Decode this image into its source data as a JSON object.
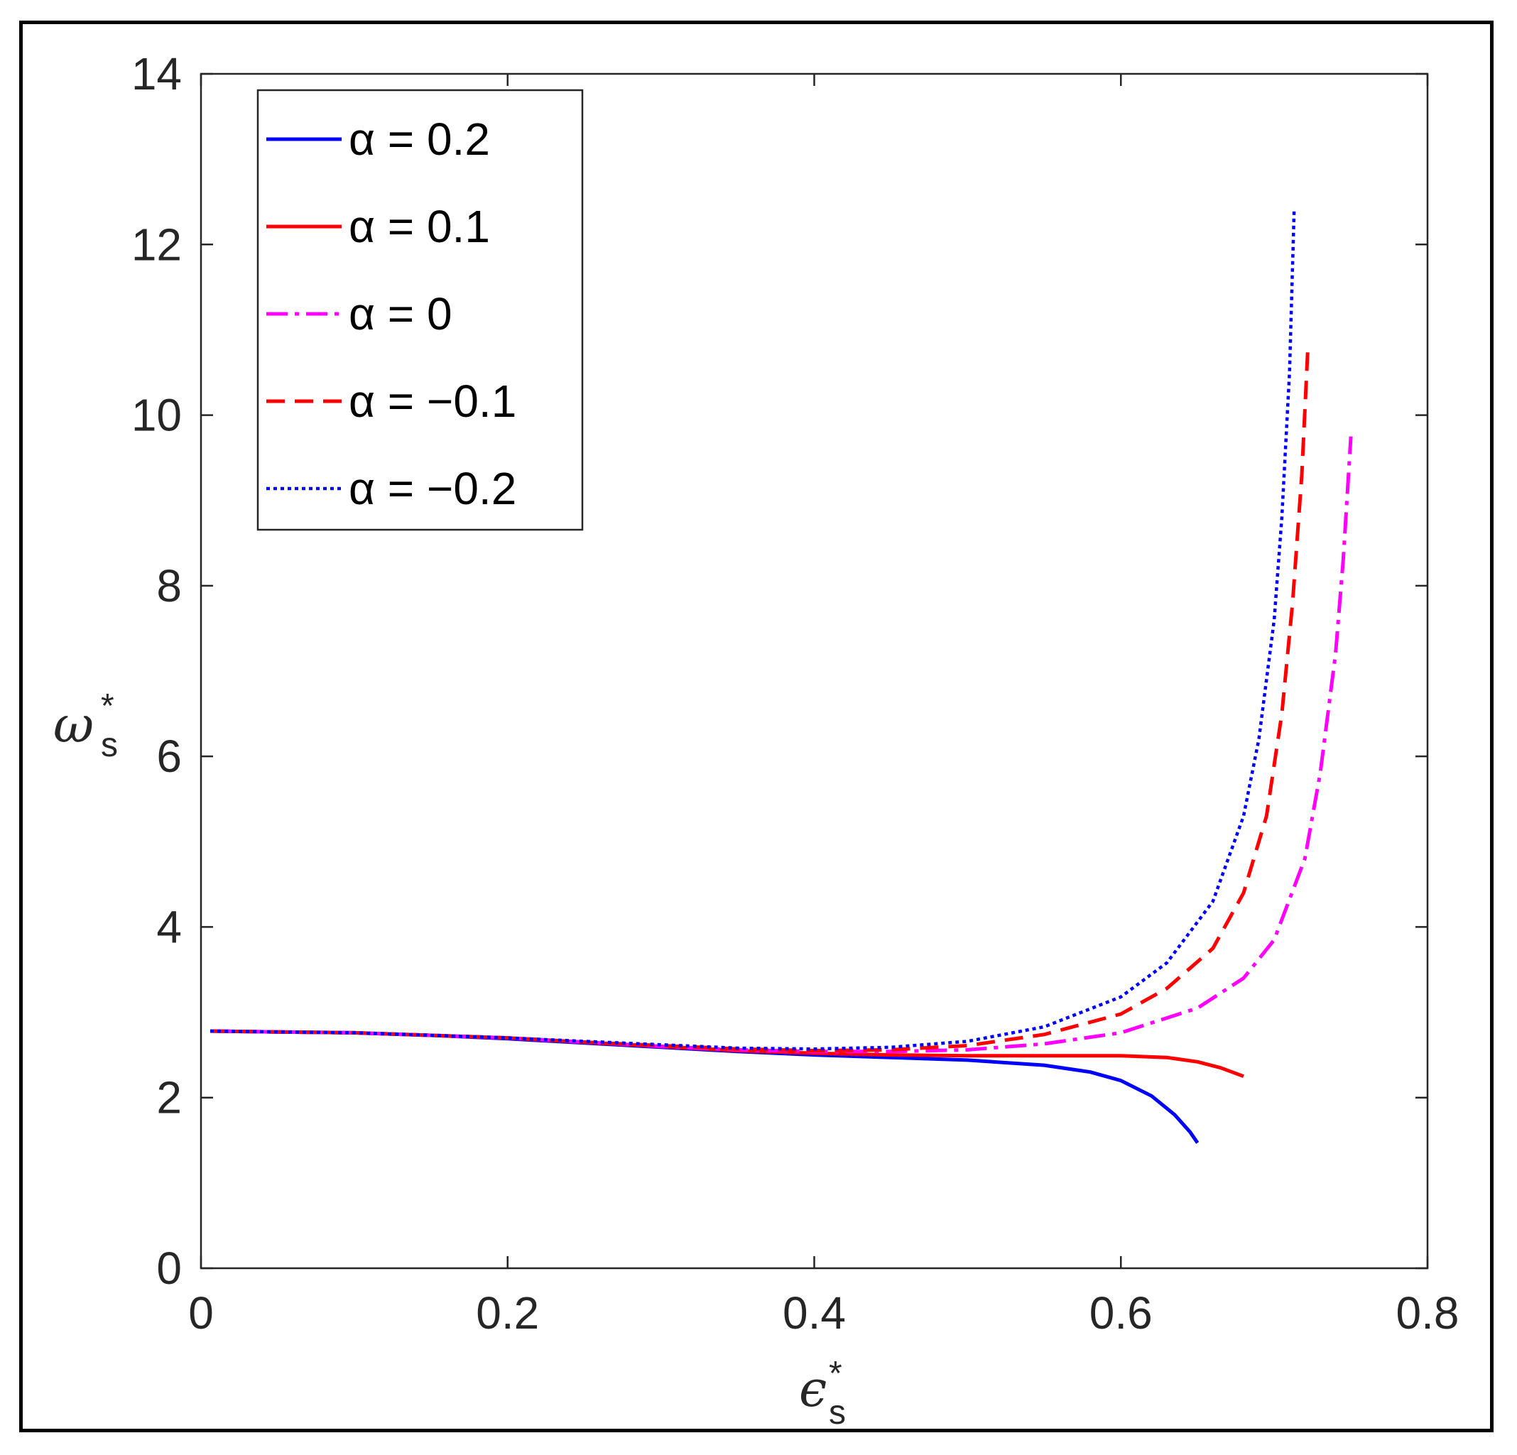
{
  "chart_data": {
    "type": "line",
    "xlabel": {
      "symbol": "ϵ",
      "subscript": "s",
      "superscript": "*"
    },
    "ylabel": {
      "symbol": "ω",
      "subscript": "s",
      "superscript": "*"
    },
    "xlim": [
      0,
      0.8
    ],
    "ylim": [
      0,
      14
    ],
    "xticks": [
      0,
      0.2,
      0.4,
      0.6,
      0.8
    ],
    "xtick_labels": [
      "0",
      "0.2",
      "0.4",
      "0.6",
      "0.8"
    ],
    "yticks": [
      0,
      2,
      4,
      6,
      8,
      10,
      12,
      14
    ],
    "ytick_labels": [
      "0",
      "2",
      "4",
      "6",
      "8",
      "10",
      "12",
      "14"
    ],
    "grid": false,
    "legend_position": "top-left",
    "series": [
      {
        "name": "α = 0.2",
        "color": "#0000ff",
        "style": "solid",
        "x": [
          0.006,
          0.05,
          0.1,
          0.15,
          0.2,
          0.25,
          0.3,
          0.35,
          0.4,
          0.45,
          0.5,
          0.55,
          0.58,
          0.6,
          0.62,
          0.635,
          0.645,
          0.65
        ],
        "y": [
          2.78,
          2.77,
          2.76,
          2.73,
          2.69,
          2.64,
          2.59,
          2.54,
          2.5,
          2.47,
          2.44,
          2.38,
          2.3,
          2.2,
          2.02,
          1.8,
          1.6,
          1.47
        ]
      },
      {
        "name": "α = 0.1",
        "color": "#ff0000",
        "style": "solid",
        "x": [
          0.006,
          0.05,
          0.1,
          0.15,
          0.2,
          0.25,
          0.3,
          0.35,
          0.4,
          0.45,
          0.5,
          0.55,
          0.6,
          0.63,
          0.65,
          0.665,
          0.68
        ],
        "y": [
          2.78,
          2.77,
          2.76,
          2.73,
          2.7,
          2.65,
          2.6,
          2.55,
          2.52,
          2.5,
          2.49,
          2.49,
          2.49,
          2.47,
          2.42,
          2.35,
          2.25
        ]
      },
      {
        "name": "α = 0",
        "color": "#ff00ff",
        "style": "dashdot",
        "x": [
          0.006,
          0.05,
          0.1,
          0.15,
          0.2,
          0.25,
          0.3,
          0.35,
          0.4,
          0.45,
          0.5,
          0.55,
          0.6,
          0.65,
          0.68,
          0.7,
          0.72,
          0.73,
          0.74,
          0.745,
          0.75
        ],
        "y": [
          2.78,
          2.77,
          2.76,
          2.73,
          2.7,
          2.65,
          2.6,
          2.56,
          2.54,
          2.54,
          2.56,
          2.63,
          2.76,
          3.05,
          3.4,
          3.85,
          4.8,
          5.8,
          7.2,
          8.3,
          9.75
        ]
      },
      {
        "name": "α = −0.1",
        "color": "#ff0000",
        "style": "dashed",
        "x": [
          0.006,
          0.05,
          0.1,
          0.15,
          0.2,
          0.25,
          0.3,
          0.35,
          0.4,
          0.45,
          0.5,
          0.55,
          0.6,
          0.63,
          0.66,
          0.68,
          0.695,
          0.705,
          0.712,
          0.718,
          0.722
        ],
        "y": [
          2.78,
          2.77,
          2.76,
          2.73,
          2.7,
          2.65,
          2.61,
          2.57,
          2.55,
          2.56,
          2.61,
          2.74,
          2.98,
          3.28,
          3.75,
          4.4,
          5.3,
          6.5,
          7.8,
          9.3,
          10.8
        ]
      },
      {
        "name": "α = −0.2",
        "color": "#0000ff",
        "style": "dotted",
        "x": [
          0.006,
          0.05,
          0.1,
          0.15,
          0.2,
          0.25,
          0.3,
          0.35,
          0.4,
          0.45,
          0.5,
          0.55,
          0.6,
          0.63,
          0.66,
          0.68,
          0.69,
          0.7,
          0.705,
          0.71,
          0.713
        ],
        "y": [
          2.78,
          2.77,
          2.76,
          2.73,
          2.7,
          2.66,
          2.62,
          2.58,
          2.57,
          2.59,
          2.66,
          2.83,
          3.18,
          3.58,
          4.3,
          5.3,
          6.2,
          7.6,
          8.8,
          10.5,
          12.4
        ]
      }
    ]
  }
}
